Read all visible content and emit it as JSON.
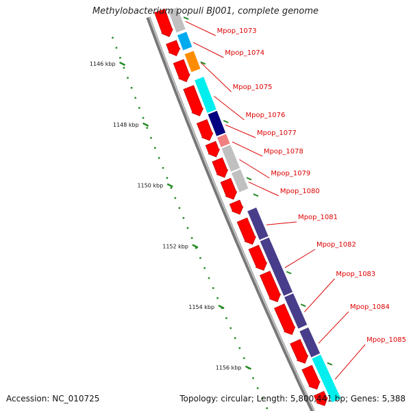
{
  "header": {
    "title": "Methylobacterium populi BJ001, complete genome"
  },
  "footer": {
    "accession": "Accession: NC_010725",
    "topology": "Topology: circular; Length: 5,800,441 bp; Genes: 5,388"
  },
  "scale": [
    {
      "label": "1146 kbp"
    },
    {
      "label": "1148 kbp"
    },
    {
      "label": "1150 kbp"
    },
    {
      "label": "1152 kbp"
    },
    {
      "label": "1154 kbp"
    },
    {
      "label": "1156 kbp"
    }
  ],
  "genes": [
    {
      "name": "Mpop_1073",
      "color": "#c0c0c0"
    },
    {
      "name": "Mpop_1074",
      "color": "#00aaee"
    },
    {
      "name": "Mpop_1075",
      "color": "#ff8c00"
    },
    {
      "name": "Mpop_1076",
      "color": "#00eeee"
    },
    {
      "name": "Mpop_1077",
      "color": "#000080"
    },
    {
      "name": "Mpop_1078",
      "color": "#f08080"
    },
    {
      "name": "Mpop_1079",
      "color": "#c0c0c0"
    },
    {
      "name": "Mpop_1080",
      "color": "#c0c0c0"
    },
    {
      "name": "Mpop_1081",
      "color": "#483d8b"
    },
    {
      "name": "Mpop_1082",
      "color": "#483d8b"
    },
    {
      "name": "Mpop_1083",
      "color": "#483d8b"
    },
    {
      "name": "Mpop_1084",
      "color": "#483d8b"
    },
    {
      "name": "Mpop_1085",
      "color": "#00eeee"
    }
  ],
  "colors": {
    "backbone": "#777777",
    "orf": "#ff0000",
    "scale_tick": "#228b22",
    "label": "#dd0000"
  }
}
